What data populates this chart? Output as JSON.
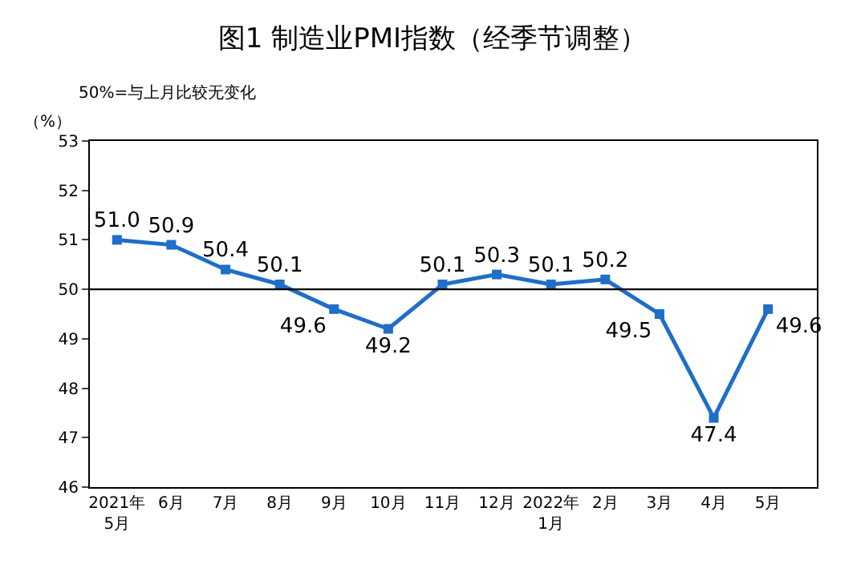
{
  "chart_data": {
    "type": "line",
    "title": "图1 制造业PMI指数（经季节调整）",
    "ylabel": "（%）",
    "annotations": [
      "50%=与上月比较无变化"
    ],
    "categories": [
      "2021年\n5月",
      "6月",
      "7月",
      "8月",
      "9月",
      "10月",
      "11月",
      "12月",
      "2022年\n1月",
      "2月",
      "3月",
      "4月",
      "5月"
    ],
    "series": [
      {
        "color": "#1f6ec8",
        "values": [
          51.0,
          50.9,
          50.4,
          50.1,
          49.6,
          49.2,
          50.1,
          50.3,
          50.1,
          50.2,
          49.5,
          47.4,
          49.6
        ]
      }
    ],
    "value_labels": [
      "51.0",
      "50.9",
      "50.4",
      "50.1",
      "49.6",
      "49.2",
      "50.1",
      "50.3",
      "50.1",
      "50.2",
      "49.5",
      "47.4",
      "49.6"
    ],
    "ylim": [
      46,
      53
    ],
    "yticks": [
      46,
      47,
      48,
      49,
      50,
      51,
      52,
      53
    ],
    "ref_lines": [
      {
        "axis": "y",
        "value": 50,
        "color": "#000000"
      }
    ],
    "grid": false,
    "legend": false,
    "marker": "square",
    "line_style": "solid"
  }
}
